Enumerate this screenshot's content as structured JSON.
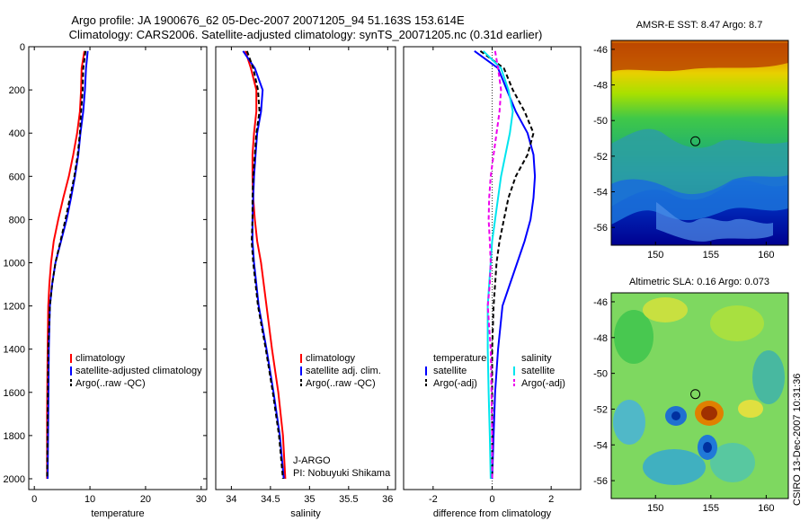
{
  "titles": {
    "line1": "Argo profile: JA 1900676_62 05-Dec-2007 20071205_94 51.163S 153.614E",
    "line2": "Climatology: CARS2006. Satellite-adjusted climatology: synTS_20071205.nc (0.31d earlier)"
  },
  "side_label": "CSIRO 13-Dec-2007 10:31:36",
  "credit": {
    "line1": "J-ARGO",
    "line2": "PI: Nobuyuki Shikama"
  },
  "colors": {
    "climatology": "#ff0000",
    "satellite": "#0000ff",
    "argo": "#000000",
    "salinity_satellite": "#00e5ee",
    "salinity_argo": "#ee00ee"
  },
  "chart_data": [
    {
      "type": "line",
      "xlabel": "temperature",
      "ylabel": "",
      "xlim": [
        -1,
        31
      ],
      "ylim": [
        2050,
        0
      ],
      "xticks": [
        0,
        10,
        20,
        30
      ],
      "yticks": [
        0,
        200,
        400,
        600,
        800,
        1000,
        1200,
        1400,
        1600,
        1800,
        2000
      ],
      "legend": [
        "climatology",
        "satellite-adjusted climatology",
        "Argo(..raw -QC)"
      ],
      "legend_position": "lower-right",
      "series": [
        {
          "name": "climatology",
          "color": "#ff0000",
          "dash": "",
          "x": [
            9.0,
            8.5,
            8.4,
            8.2,
            7.7,
            7.0,
            6.2,
            5.2,
            4.3,
            3.5,
            3.0,
            2.7,
            2.5,
            2.4,
            2.3,
            2.3
          ],
          "y": [
            20,
            100,
            200,
            300,
            400,
            500,
            600,
            700,
            800,
            900,
            1000,
            1100,
            1200,
            1400,
            1700,
            2000
          ]
        },
        {
          "name": "satellite-adjusted climatology",
          "color": "#0000ff",
          "dash": "",
          "x": [
            9.6,
            9.3,
            9.1,
            8.8,
            8.3,
            7.9,
            7.3,
            6.6,
            5.8,
            4.8,
            3.8,
            3.2,
            2.8,
            2.6,
            2.5,
            2.4
          ],
          "y": [
            20,
            100,
            200,
            300,
            400,
            500,
            600,
            700,
            800,
            900,
            1000,
            1100,
            1200,
            1400,
            1700,
            2000
          ]
        },
        {
          "name": "Argo(..raw -QC)",
          "color": "#000000",
          "dash": "5,3",
          "x": [
            9.2,
            8.8,
            8.7,
            8.4,
            8.2,
            7.8,
            7.2,
            6.4,
            5.6,
            4.7,
            3.8,
            3.2,
            2.8,
            2.5,
            2.4,
            2.3
          ],
          "y": [
            20,
            100,
            200,
            300,
            400,
            500,
            600,
            700,
            800,
            900,
            1000,
            1100,
            1200,
            1400,
            1700,
            2000
          ]
        }
      ]
    },
    {
      "type": "line",
      "xlabel": "salinity",
      "ylabel": "",
      "xlim": [
        33.8,
        36.1
      ],
      "ylim": [
        2050,
        0
      ],
      "xticks": [
        34,
        34.5,
        35,
        35.5,
        36
      ],
      "xticklabels": [
        "34",
        "34.5",
        "35",
        "35.5",
        "36"
      ],
      "legend": [
        "climatology",
        "satellite adj. clim.",
        "Argo(..raw -QC)"
      ],
      "legend_position": "lower-right",
      "series": [
        {
          "name": "climatology",
          "color": "#ff0000",
          "dash": "",
          "x": [
            34.18,
            34.25,
            34.32,
            34.32,
            34.29,
            34.27,
            34.27,
            34.28,
            34.3,
            34.33,
            34.38,
            34.45,
            34.52,
            34.6,
            34.66,
            34.69
          ],
          "y": [
            20,
            100,
            200,
            300,
            400,
            500,
            600,
            700,
            800,
            900,
            1000,
            1200,
            1400,
            1600,
            1800,
            2000
          ]
        },
        {
          "name": "satellite adj. clim.",
          "color": "#0000ff",
          "dash": "",
          "x": [
            34.15,
            34.3,
            34.4,
            34.38,
            34.33,
            34.31,
            34.29,
            34.28,
            34.27,
            34.27,
            34.29,
            34.35,
            34.45,
            34.54,
            34.62,
            34.67
          ],
          "y": [
            20,
            100,
            200,
            300,
            400,
            500,
            600,
            700,
            800,
            900,
            1000,
            1200,
            1400,
            1600,
            1800,
            2000
          ]
        },
        {
          "name": "Argo(..raw -QC)",
          "color": "#000000",
          "dash": "5,3",
          "x": [
            34.2,
            34.28,
            34.34,
            34.36,
            34.32,
            34.3,
            34.28,
            34.27,
            34.27,
            34.26,
            34.28,
            34.34,
            34.44,
            34.53,
            34.61,
            34.66
          ],
          "y": [
            20,
            100,
            200,
            300,
            400,
            500,
            600,
            700,
            800,
            900,
            1000,
            1200,
            1400,
            1600,
            1800,
            2000
          ]
        }
      ]
    },
    {
      "type": "line",
      "xlabel": "difference from climatology",
      "ylabel": "",
      "xlim": [
        -3,
        3
      ],
      "ylim": [
        2050,
        0
      ],
      "xticks": [
        -2,
        0,
        2
      ],
      "legend_headers": [
        "temperature",
        "salinity"
      ],
      "legend": [
        "satellite",
        "Argo(-adj)",
        "satellite",
        "Argo(-adj)"
      ],
      "legend_position": "lower-right",
      "zero_line": true,
      "series": [
        {
          "name": "satellite",
          "color": "#0000ff",
          "dash": "",
          "x": [
            -0.6,
            0.2,
            0.5,
            0.8,
            1.2,
            1.4,
            1.45,
            1.4,
            1.3,
            1.1,
            0.85,
            0.6,
            0.35,
            0.2,
            0.1,
            0.05,
            0.0
          ],
          "y": [
            20,
            100,
            200,
            300,
            400,
            500,
            600,
            700,
            800,
            900,
            1000,
            1100,
            1200,
            1400,
            1600,
            1800,
            2000
          ]
        },
        {
          "name": "Argo(-adj)",
          "color": "#000000",
          "dash": "5,3",
          "x": [
            -0.4,
            0.4,
            0.7,
            1.1,
            1.4,
            1.2,
            0.8,
            0.55,
            0.4,
            0.25,
            0.15,
            0.1,
            0.05,
            0.0,
            0.0,
            0.0,
            0.0
          ],
          "y": [
            20,
            100,
            200,
            300,
            400,
            500,
            600,
            700,
            800,
            900,
            1000,
            1100,
            1200,
            1400,
            1600,
            1800,
            2000
          ]
        },
        {
          "name": "satellite",
          "color": "#00e5ee",
          "dash": "",
          "x": [
            -0.3,
            0.3,
            0.55,
            0.7,
            0.6,
            0.45,
            0.3,
            0.2,
            0.1,
            0.0,
            -0.05,
            -0.1,
            -0.15,
            -0.15,
            -0.12,
            -0.08,
            -0.05
          ],
          "y": [
            20,
            100,
            200,
            300,
            400,
            500,
            600,
            700,
            800,
            900,
            1000,
            1100,
            1200,
            1400,
            1600,
            1800,
            2000
          ]
        },
        {
          "name": "Argo(-adj)",
          "color": "#ee00ee",
          "dash": "5,3",
          "x": [
            0.1,
            0.2,
            0.3,
            0.25,
            0.15,
            0.05,
            -0.05,
            -0.1,
            -0.12,
            -0.08,
            -0.05,
            -0.08,
            -0.15,
            -0.05,
            -0.02,
            0.0,
            0.0
          ],
          "y": [
            20,
            100,
            200,
            300,
            400,
            500,
            600,
            700,
            800,
            900,
            1000,
            1100,
            1200,
            1400,
            1600,
            1800,
            2000
          ]
        }
      ]
    },
    {
      "type": "heatmap",
      "title": "AMSR-E SST: 8.47 Argo: 8.7",
      "xlim": [
        146,
        162
      ],
      "ylim": [
        -57,
        -45.5
      ],
      "xticks": [
        150,
        155,
        160
      ],
      "yticks": [
        -46,
        -48,
        -50,
        -52,
        -54,
        -56
      ],
      "marker": [
        153.6,
        -51.16
      ]
    },
    {
      "type": "heatmap",
      "title": "Altimetric SLA: 0.16 Argo: 0.073",
      "xlim": [
        146,
        162
      ],
      "ylim": [
        -57,
        -45.5
      ],
      "xticks": [
        150,
        155,
        160
      ],
      "yticks": [
        -46,
        -48,
        -50,
        -52,
        -54,
        -56
      ],
      "marker": [
        153.6,
        -51.16
      ]
    }
  ]
}
